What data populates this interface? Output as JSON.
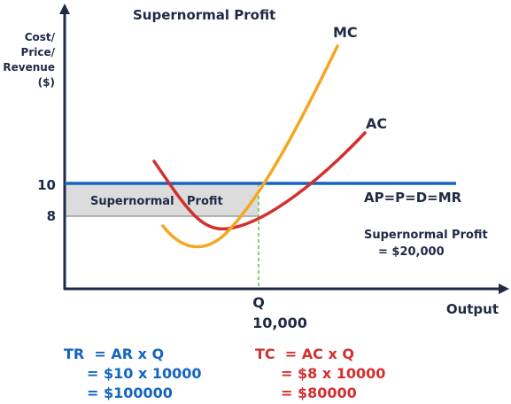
{
  "title": "Supernormal Profit",
  "y_axis": {
    "label_lines": [
      "Cost/",
      "Price/",
      "Revenue",
      "($)"
    ],
    "ticks": [
      "10",
      "8"
    ]
  },
  "x_axis": {
    "label": "Output",
    "tick_symbol": "Q",
    "tick_value": "10,000"
  },
  "curves": {
    "mc_label": "MC",
    "ac_label": "AC",
    "demand_label": "AP=P=D=MR"
  },
  "shaded_area_label_parts": [
    "Supernormal",
    "Profit"
  ],
  "profit_note": {
    "line1": "Supernormal Profit",
    "line2": "= $20,000"
  },
  "tr_formula": {
    "line1": "TR  = AR x Q",
    "line2": "= $10 x 10000",
    "line3": "= $100000"
  },
  "tc_formula": {
    "line1": "TC  = AC x Q",
    "line2": "= $8 x 10000",
    "line3": "= $80000"
  },
  "colors": {
    "mc": "#f5a623",
    "ac": "#d32f2f",
    "demand": "#1565c0",
    "shaded": "#dcdcdc",
    "axis": "#1f2a44",
    "dashed_guide": "#6abf3a"
  }
}
